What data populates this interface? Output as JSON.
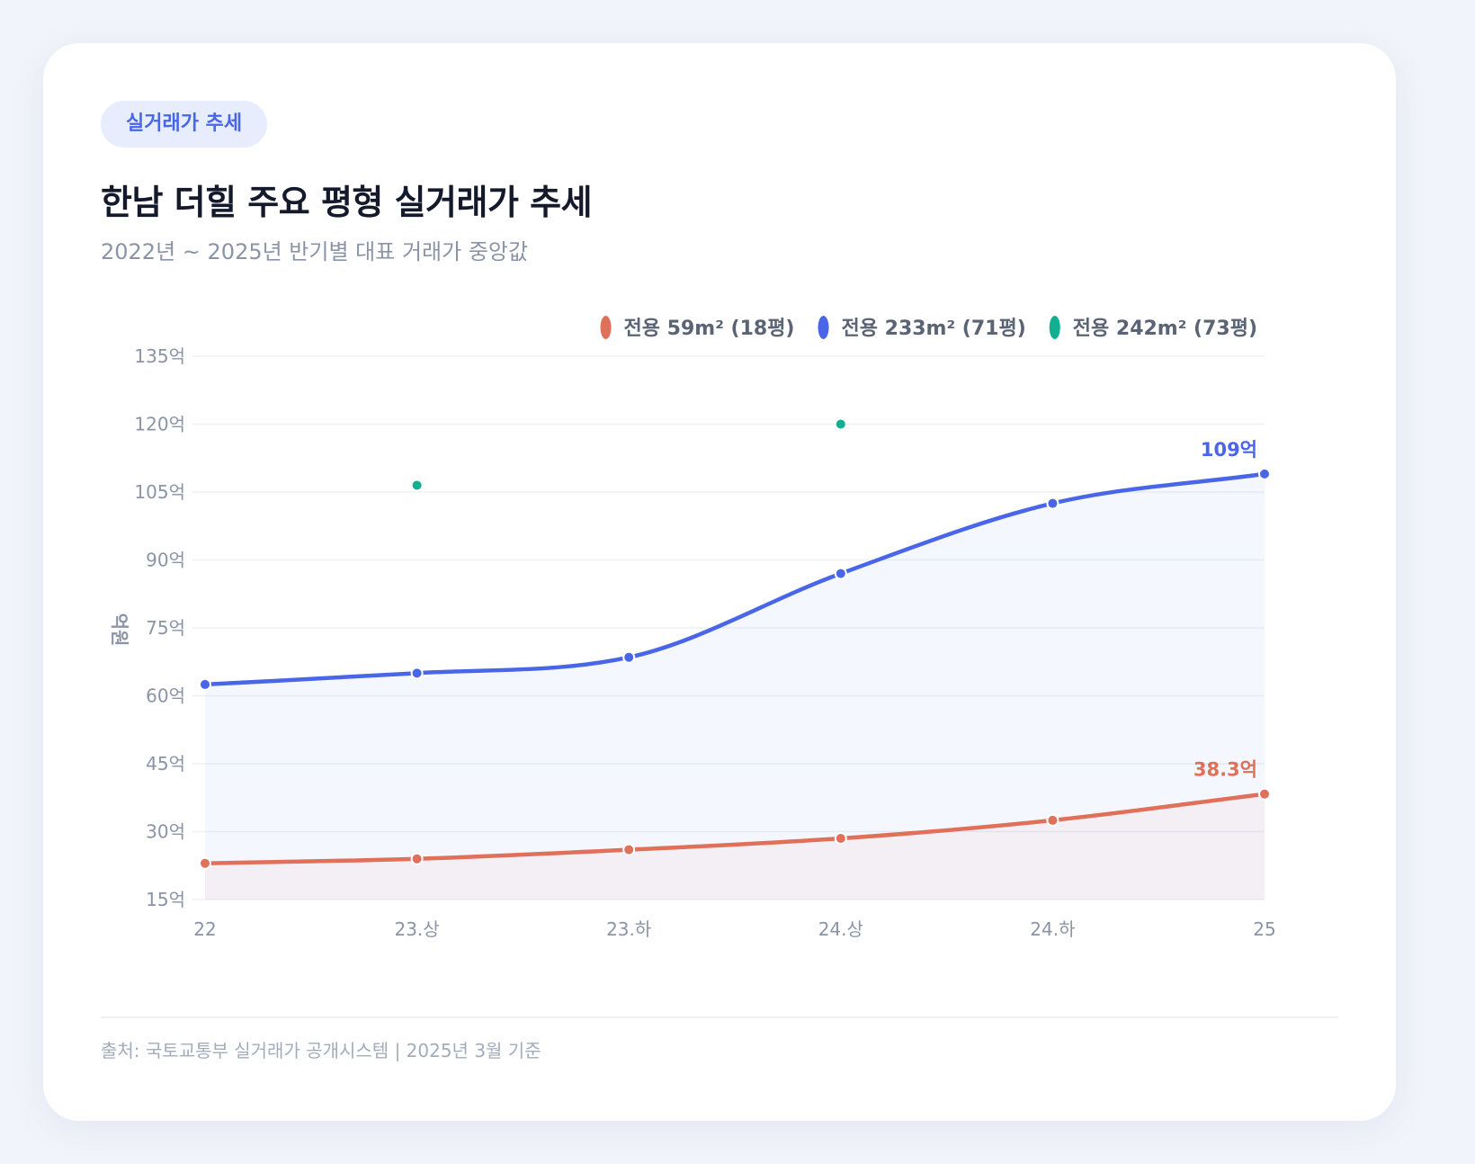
{
  "card": {
    "badge": "실거래가 추세",
    "title": "한남 더힐 주요 평형 실거래가 추세",
    "subtitle": "2022년 ~ 2025년 반기별 대표 거래가 중앙값",
    "source": "출처: 국토교통부 실거래가 공개시스템 | 2025년 3월 기준"
  },
  "colors": {
    "series59": "#e0705a",
    "series233": "#4a66e8",
    "series242": "#10b090",
    "grid": "#eef1f6",
    "tick": "#8a94a6",
    "legend_text": "#5b6475"
  },
  "chart_data": {
    "type": "line",
    "title": "한남 더힐 주요 평형 실거래가 추세",
    "xlabel": "",
    "ylabel": "억원",
    "categories": [
      "22",
      "23.상",
      "23.하",
      "24.상",
      "24.하",
      "25"
    ],
    "ylim": [
      15,
      135
    ],
    "yticks": [
      15,
      30,
      45,
      60,
      75,
      90,
      105,
      120,
      135
    ],
    "ytick_suffix": "억",
    "grid": true,
    "legend_position": "top-right",
    "series": [
      {
        "name": "전용 59m² (18평)",
        "color": "#e0705a",
        "values": [
          23,
          24,
          26,
          28.5,
          32.5,
          38.3
        ],
        "end_label": "38.3억",
        "line": true,
        "fill": true
      },
      {
        "name": "전용 233m² (71평)",
        "color": "#4a66e8",
        "values": [
          62.5,
          65,
          68.5,
          87,
          102.5,
          109
        ],
        "end_label": "109억",
        "line": true,
        "fill": true
      },
      {
        "name": "전용 242m² (73평)",
        "color": "#10b090",
        "values": [
          null,
          106.5,
          null,
          120,
          null,
          null
        ],
        "end_label": "",
        "line": false,
        "fill": false
      }
    ]
  }
}
